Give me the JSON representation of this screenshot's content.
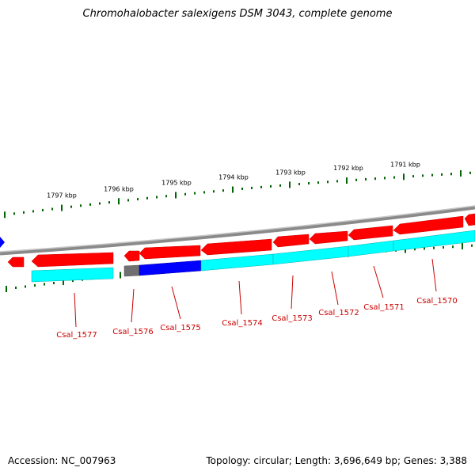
{
  "title": "Chromohalobacter salexigens DSM 3043, complete genome",
  "footer": {
    "accession": "Accession: NC_007963",
    "summary": "Topology: circular; Length: 3,696,649 bp; Genes: 3,388"
  },
  "colors": {
    "gene_red": "#ff0000",
    "gene_cyan": "#00ffff",
    "highlight_blue": "#0000ff",
    "gray": "#707070",
    "tick_green": "#006400",
    "label_red": "#cc0000"
  },
  "scale_labels": [
    "1797 kbp",
    "1796 kbp",
    "1795 kbp",
    "1794 kbp",
    "1793 kbp",
    "1792 kbp",
    "1791 kbp"
  ],
  "gene_labels": [
    "Csal_1577",
    "Csal_1576",
    "Csal_1575",
    "Csal_1574",
    "Csal_1573",
    "Csal_1572",
    "Csal_1571",
    "Csal_1570"
  ]
}
